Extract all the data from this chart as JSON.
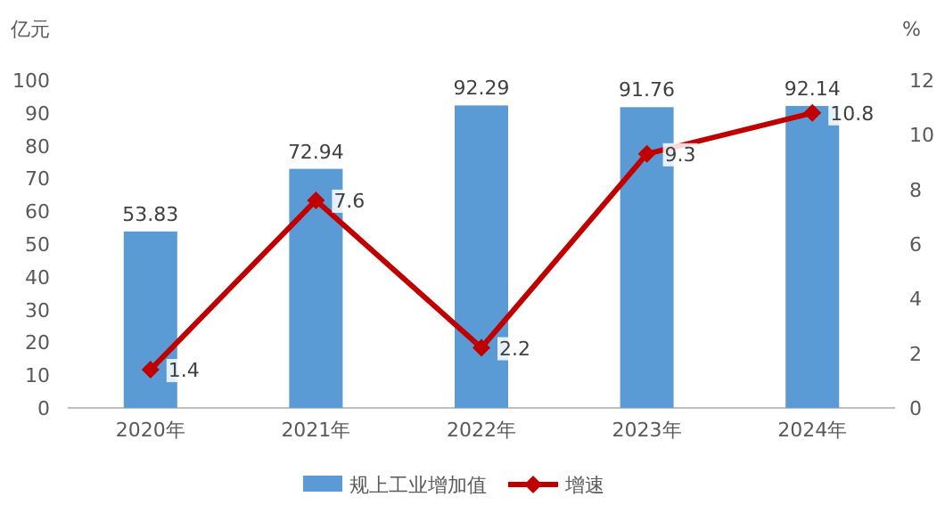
{
  "chart_data": {
    "type": "bar",
    "categories": [
      "2020年",
      "2021年",
      "2022年",
      "2023年",
      "2024年"
    ],
    "ylabel": "亿元",
    "y2label": "%",
    "series": [
      {
        "name": "规上工业增加值",
        "color": "#5b9bd5",
        "values": [
          53.83,
          72.94,
          92.29,
          91.76,
          92.14
        ]
      },
      {
        "name": "增速",
        "type": "line",
        "axis": "y2",
        "color": "#c00000",
        "marker": "diamond",
        "values": [
          1.4,
          7.6,
          2.2,
          9.3,
          10.8
        ]
      }
    ],
    "ylim": [
      0,
      100
    ],
    "yticks": [
      0,
      10,
      20,
      30,
      40,
      50,
      60,
      70,
      80,
      90,
      100
    ],
    "y2lim": [
      0,
      12
    ],
    "y2ticks": [
      0,
      2,
      4,
      6,
      8,
      10,
      12
    ],
    "data_labels": true,
    "legend": "bottom",
    "grid": false
  }
}
